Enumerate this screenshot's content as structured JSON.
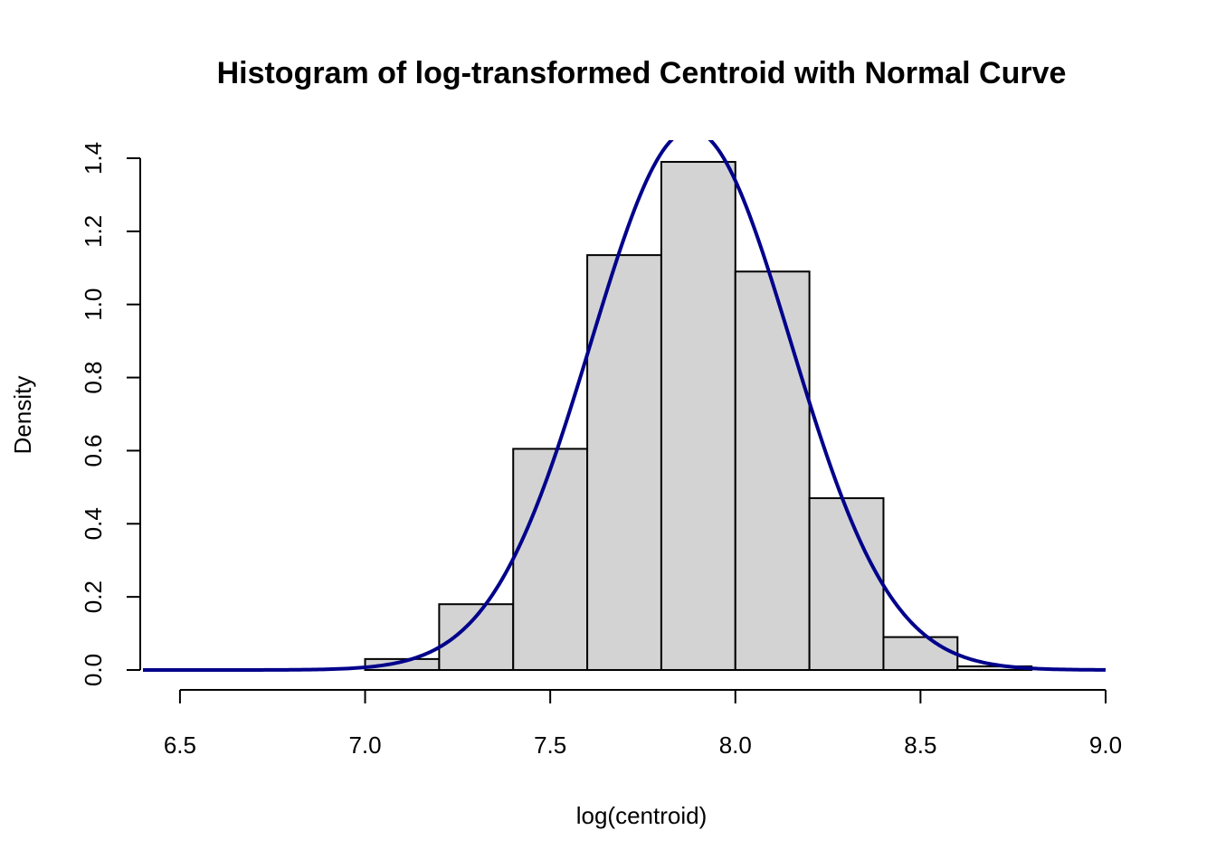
{
  "chart_data": {
    "type": "bar",
    "title": "Histogram of log-transformed Centroid with Normal Curve",
    "xlabel": "log(centroid)",
    "ylabel": "Density",
    "xlim": [
      6.4,
      9.0
    ],
    "ylim": [
      0,
      1.4
    ],
    "x_ticks": [
      "6.5",
      "7.0",
      "7.5",
      "8.0",
      "8.5",
      "9.0"
    ],
    "y_ticks": [
      "0.0",
      "0.2",
      "0.4",
      "0.6",
      "0.8",
      "1.0",
      "1.2",
      "1.4"
    ],
    "bins": [
      {
        "x0": 7.0,
        "x1": 7.2,
        "density": 0.03
      },
      {
        "x0": 7.2,
        "x1": 7.4,
        "density": 0.18
      },
      {
        "x0": 7.4,
        "x1": 7.6,
        "density": 0.605
      },
      {
        "x0": 7.6,
        "x1": 7.8,
        "density": 1.135
      },
      {
        "x0": 7.8,
        "x1": 8.0,
        "density": 1.39
      },
      {
        "x0": 8.0,
        "x1": 8.2,
        "density": 1.09
      },
      {
        "x0": 8.2,
        "x1": 8.4,
        "density": 0.47
      },
      {
        "x0": 8.4,
        "x1": 8.6,
        "density": 0.09
      },
      {
        "x0": 8.6,
        "x1": 8.8,
        "density": 0.01
      }
    ],
    "normal_curve": {
      "mean": 7.88,
      "sd": 0.27,
      "color": "#00008b"
    },
    "bar_color": "#d3d3d3"
  }
}
